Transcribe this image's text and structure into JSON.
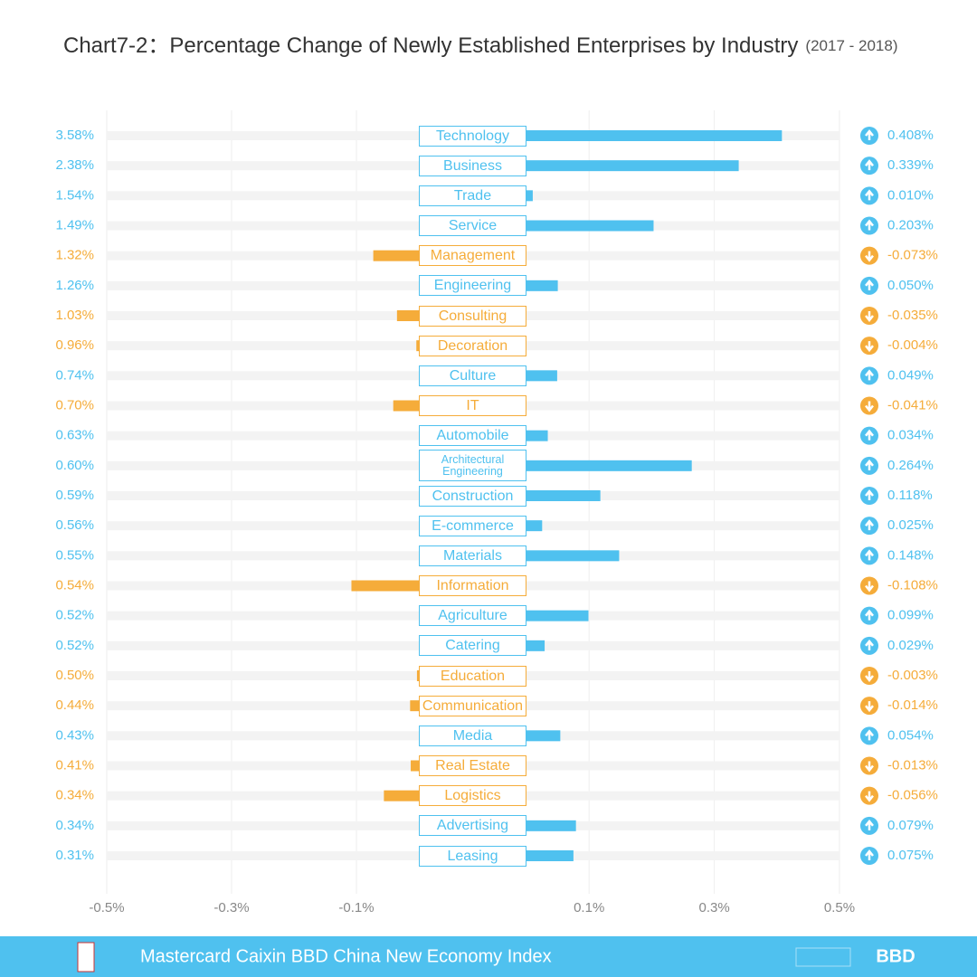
{
  "chart_data": {
    "type": "diverging-bar",
    "title": "Chart7-2：Percentage Change of Newly Established Enterprises by Industry",
    "subtitle": "(2017 - 2018)",
    "categories": [
      "Technology",
      "Business",
      "Trade",
      "Service",
      "Management",
      "Engineering",
      "Consulting",
      "Decoration",
      "Culture",
      "IT",
      "Automobile",
      "Architectural Engineering",
      "Construction",
      "E-commerce",
      "Materials",
      "Information",
      "Agriculture",
      "Catering",
      "Education",
      "Communication",
      "Media",
      "Real Estate",
      "Logistics",
      "Advertising",
      "Leasing"
    ],
    "values": [
      0.408,
      0.339,
      0.01,
      0.203,
      -0.073,
      0.05,
      -0.035,
      -0.004,
      0.049,
      -0.041,
      0.034,
      0.264,
      0.118,
      0.025,
      0.148,
      -0.108,
      0.099,
      0.029,
      -0.003,
      -0.014,
      0.054,
      -0.013,
      -0.056,
      0.079,
      0.075
    ],
    "value_labels": [
      "0.408%",
      "0.339%",
      "0.010%",
      "0.203%",
      "-0.073%",
      "0.050%",
      "-0.035%",
      "-0.004%",
      "0.049%",
      "-0.041%",
      "0.034%",
      "0.264%",
      "0.118%",
      "0.025%",
      "0.148%",
      "-0.108%",
      "0.099%",
      "0.029%",
      "-0.003%",
      "-0.014%",
      "0.054%",
      "-0.013%",
      "-0.056%",
      "0.079%",
      "0.075%"
    ],
    "shares": [
      3.58,
      2.38,
      1.54,
      1.49,
      1.32,
      1.26,
      1.03,
      0.96,
      0.74,
      0.7,
      0.63,
      0.6,
      0.59,
      0.56,
      0.55,
      0.54,
      0.52,
      0.52,
      0.5,
      0.44,
      0.43,
      0.41,
      0.34,
      0.34,
      0.31
    ],
    "share_labels": [
      "3.58%",
      "2.38%",
      "1.54%",
      "1.49%",
      "1.32%",
      "1.26%",
      "1.03%",
      "0.96%",
      "0.74%",
      "0.70%",
      "0.63%",
      "0.60%",
      "0.59%",
      "0.56%",
      "0.55%",
      "0.54%",
      "0.52%",
      "0.52%",
      "0.50%",
      "0.44%",
      "0.43%",
      "0.41%",
      "0.34%",
      "0.34%",
      "0.31%"
    ],
    "positive_color": "#4fc1ef",
    "negative_color": "#f5ac3a",
    "xlim": [
      -0.5,
      0.5
    ],
    "xticks": [
      {
        "value": -0.5,
        "label": "-0.5%"
      },
      {
        "value": -0.3,
        "label": "-0.3%"
      },
      {
        "value": -0.1,
        "label": "-0.1%"
      },
      {
        "value": 0.1,
        "label": "0.1%"
      },
      {
        "value": 0.3,
        "label": "0.3%"
      },
      {
        "value": 0.5,
        "label": "0.5%"
      }
    ],
    "grid": true,
    "footer": "Mastercard Caixin BBD China New Economy Index",
    "footer_logo": "BBD"
  }
}
